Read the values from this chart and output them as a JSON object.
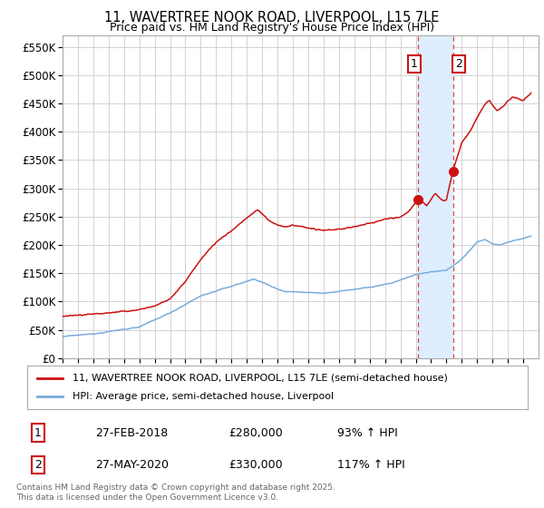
{
  "title_line1": "11, WAVERTREE NOOK ROAD, LIVERPOOL, L15 7LE",
  "title_line2": "Price paid vs. HM Land Registry's House Price Index (HPI)",
  "ylim": [
    0,
    570000
  ],
  "yticks": [
    0,
    50000,
    100000,
    150000,
    200000,
    250000,
    300000,
    350000,
    400000,
    450000,
    500000,
    550000
  ],
  "ytick_labels": [
    "£0",
    "£50K",
    "£100K",
    "£150K",
    "£200K",
    "£250K",
    "£300K",
    "£350K",
    "£400K",
    "£450K",
    "£500K",
    "£550K"
  ],
  "hpi_color": "#7aabdb",
  "price_color": "#cc1111",
  "marker_color": "#cc1111",
  "vline_color": "#dd4444",
  "shade_color": "#ddeeff",
  "legend_items": [
    "11, WAVERTREE NOOK ROAD, LIVERPOOL, L15 7LE (semi-detached house)",
    "HPI: Average price, semi-detached house, Liverpool"
  ],
  "annotation1_label": "1",
  "annotation1_date": "27-FEB-2018",
  "annotation1_price": "£280,000",
  "annotation1_hpi": "93% ↑ HPI",
  "annotation1_year": 2018.15,
  "annotation1_value": 280000,
  "annotation2_label": "2",
  "annotation2_date": "27-MAY-2020",
  "annotation2_price": "£330,000",
  "annotation2_hpi": "117% ↑ HPI",
  "annotation2_year": 2020.42,
  "annotation2_value": 330000,
  "footnote": "Contains HM Land Registry data © Crown copyright and database right 2025.\nThis data is licensed under the Open Government Licence v3.0.",
  "background_color": "#ffffff",
  "grid_color": "#cccccc"
}
